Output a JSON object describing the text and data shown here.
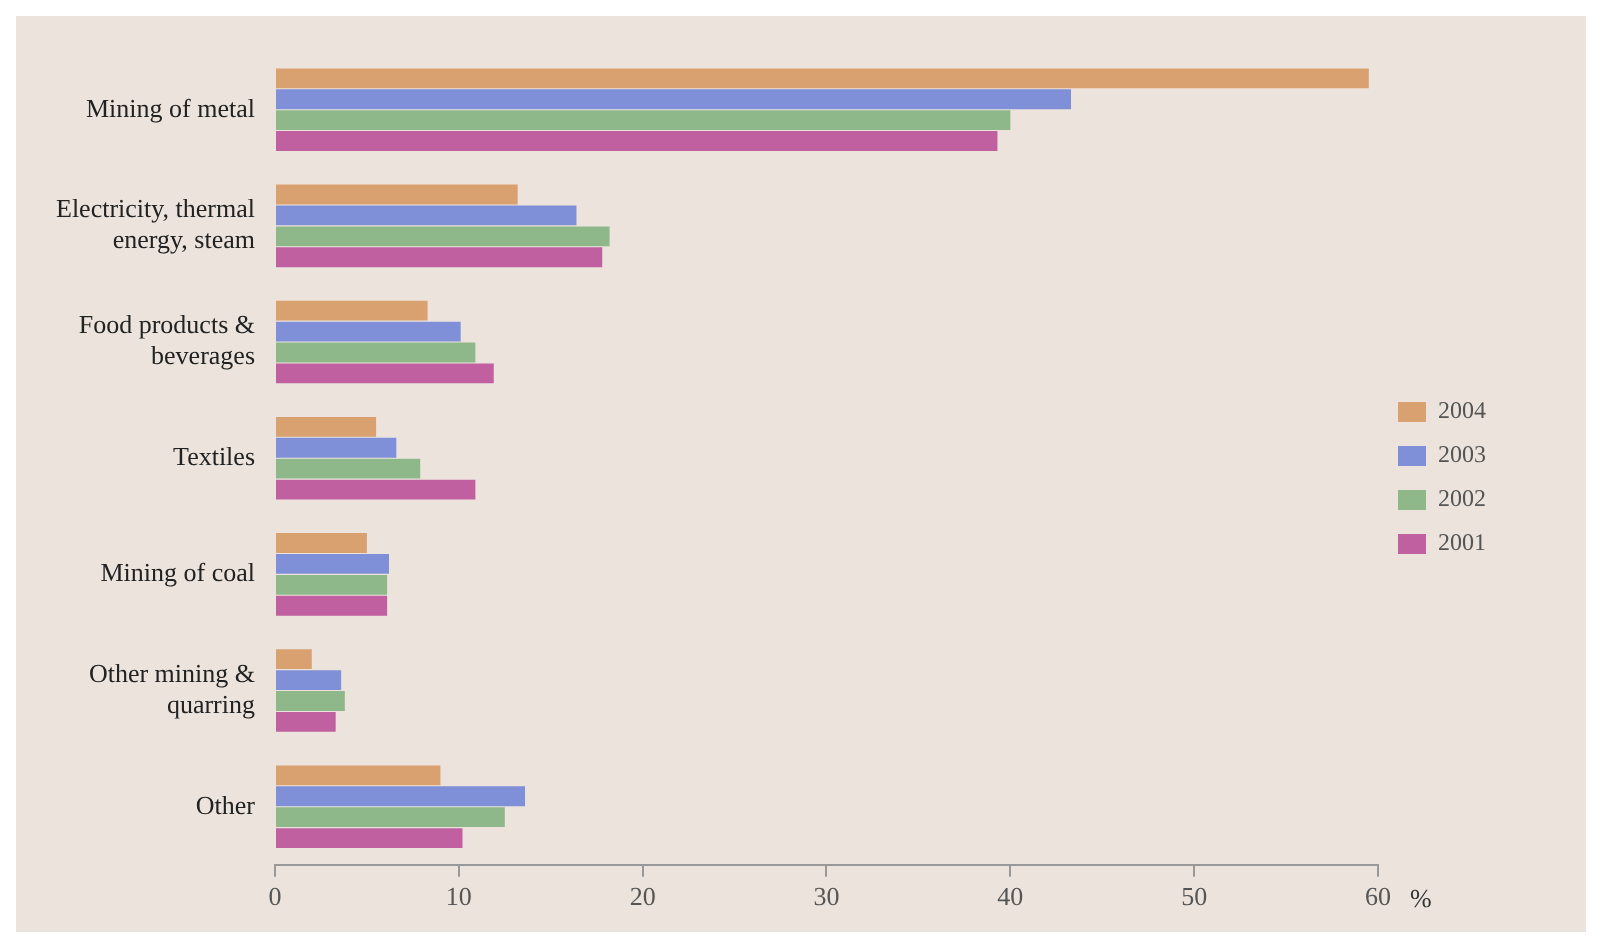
{
  "chart_data": {
    "type": "bar",
    "orientation": "horizontal",
    "xlabel": "%",
    "categories": [
      "Mining of metal",
      "Electricity, thermal energy, steam",
      "Food products & beverages",
      "Textiles",
      "Mining of coal",
      "Other mining & quarring",
      "Other"
    ],
    "series": [
      {
        "name": "2004",
        "color": "#d9a070",
        "values": [
          59.5,
          13.2,
          8.3,
          5.5,
          5.0,
          2.0,
          9.0
        ]
      },
      {
        "name": "2003",
        "color": "#7f8fd8",
        "values": [
          43.3,
          16.4,
          10.1,
          6.6,
          6.2,
          3.6,
          13.6
        ]
      },
      {
        "name": "2002",
        "color": "#8fb88a",
        "values": [
          40.0,
          18.2,
          10.9,
          7.9,
          6.1,
          3.8,
          12.5
        ]
      },
      {
        "name": "2001",
        "color": "#c060a0",
        "values": [
          39.3,
          17.8,
          11.9,
          10.9,
          6.1,
          3.3,
          10.2
        ]
      }
    ],
    "xlim": [
      0,
      60
    ],
    "xticks": [
      0,
      10,
      20,
      30,
      40,
      50,
      60
    ],
    "grid": false,
    "legend": "right"
  }
}
